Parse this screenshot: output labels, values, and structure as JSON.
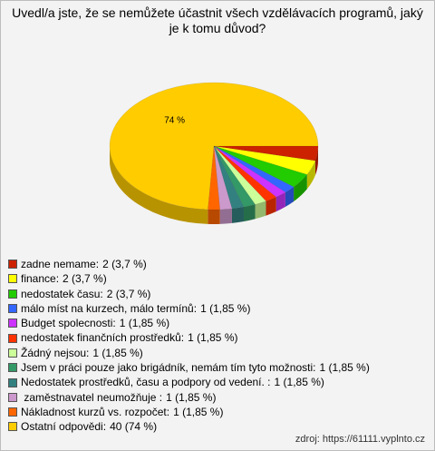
{
  "chart_data": {
    "type": "pie3d",
    "title": "Uvedl/a jste, že se nemůžete účastnit všech vzdělávacích programů, jaký je k tomu důvod?",
    "categories": [
      "zadne nemame:",
      "finance:",
      "nedostatek času:",
      "málo míst na kurzech, málo termínů:",
      "Budget spolecnosti:",
      "nedostatek finančních prostředků:",
      "Žádný nejsou:",
      "Jsem v práci pouze jako brigádník, nemám tím tyto možnosti:",
      "Nedostatek prostředků, času a podpory od vedení. :",
      " zaměstnavatel neumožňuje :",
      "Nákladnost kurzů vs. rozpočet:",
      "Ostatní odpovědi:"
    ],
    "values": [
      2,
      2,
      2,
      1,
      1,
      1,
      1,
      1,
      1,
      1,
      1,
      40
    ],
    "value_labels": [
      "2 (3,7 %)",
      "2 (3,7 %)",
      "2 (3,7 %)",
      "1 (1,85 %)",
      "1 (1,85 %)",
      "1 (1,85 %)",
      "1 (1,85 %)",
      "1 (1,85 %)",
      "1 (1,85 %)",
      "1 (1,85 %)",
      "1 (1,85 %)",
      "40 (74 %)"
    ],
    "colors": [
      "#cc2200",
      "#ffff00",
      "#22cc00",
      "#3366ff",
      "#cc33ff",
      "#ff3300",
      "#ccff99",
      "#339966",
      "#338080",
      "#cc99cc",
      "#ff6600",
      "#ffcc00"
    ],
    "annotations": [
      "74 %"
    ],
    "source": "zdroj: https://61111.vyplnto.cz"
  }
}
